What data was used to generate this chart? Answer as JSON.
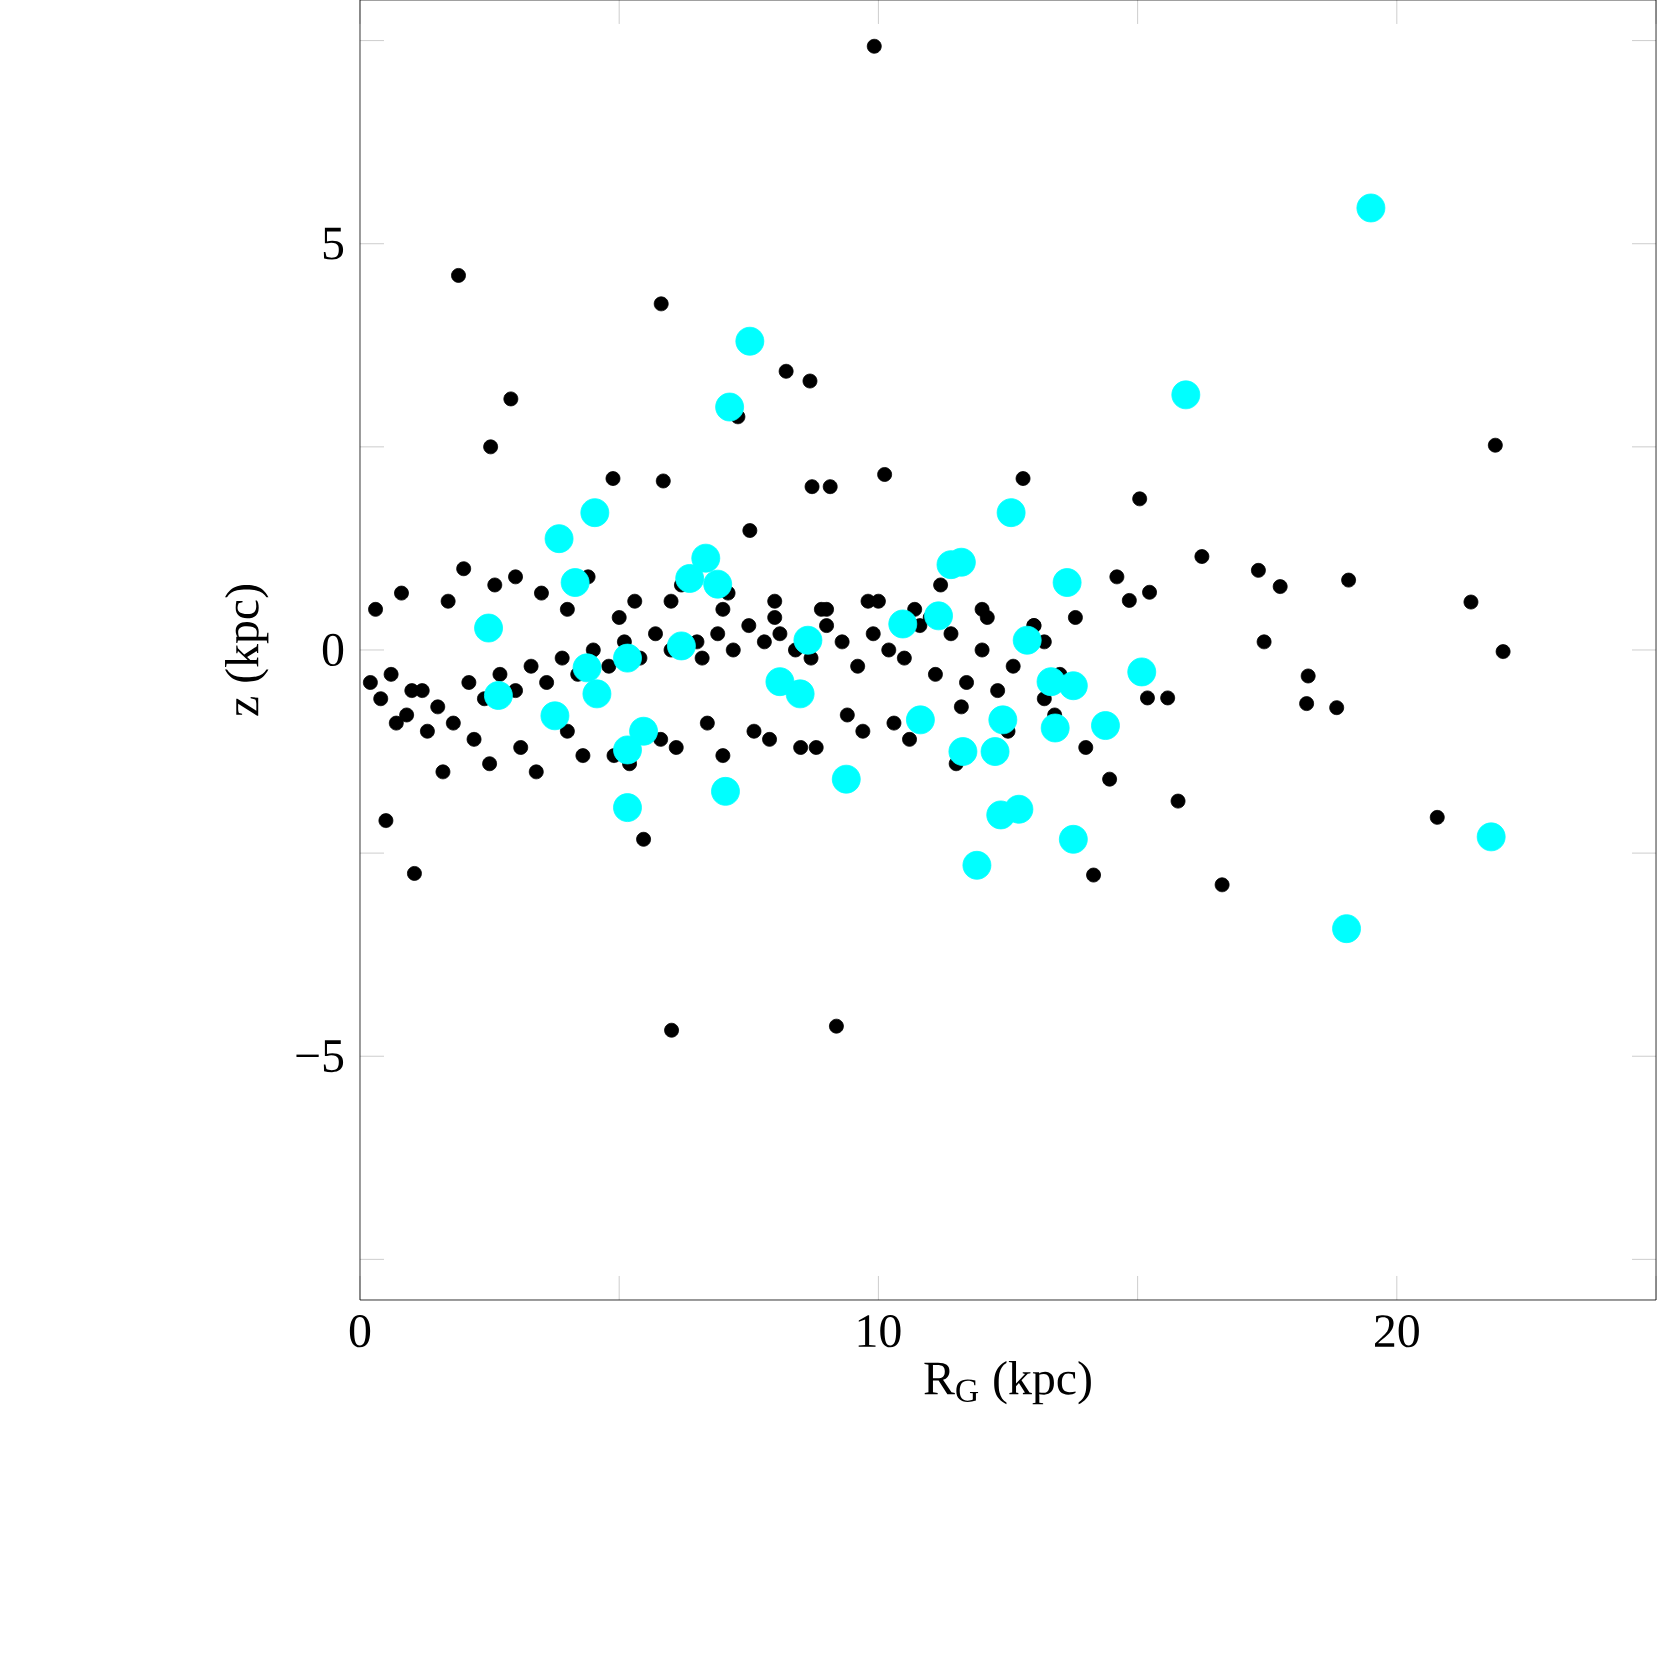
{
  "chart_data": {
    "type": "scatter",
    "xlabel": "R$_{G}$ (kpc)",
    "ylabel": "z (kpc)",
    "grid": false,
    "xlim": [
      0,
      25
    ],
    "ylim": [
      -8,
      8
    ],
    "xticks": [
      0,
      {
        "value": 5,
        "label": null
      },
      10,
      {
        "value": 15,
        "label": null
      },
      20,
      {
        "value": 25,
        "label": null
      }
    ],
    "yticks": [
      {
        "value": -5,
        "label": "−5"
      },
      {
        "value": -2.5,
        "label": null
      },
      0,
      {
        "value": 2.5,
        "label": null
      },
      5,
      {
        "value": -7.5,
        "label": null
      },
      {
        "value": 7.5,
        "label": null
      }
    ],
    "series": [
      {
        "color": "#000000",
        "x": [
          9.92,
          1.9,
          5.81,
          2.91,
          2.52,
          7.29,
          8.22,
          8.68,
          10.12,
          12.79,
          15.04,
          21.9,
          8.72,
          9.07,
          5.85,
          4.88,
          7.52,
          16.24,
          17.33,
          17.75,
          19.07,
          21.43,
          22.05,
          17.44,
          18.29,
          18.26,
          18.84,
          20.78,
          16.63,
          15.78,
          14.15,
          14.46,
          6.01,
          9.19,
          1.05,
          0.5,
          5.47,
          15.19,
          15.58,
          15.23,
          14.84,
          0.2,
          0.4,
          0.6,
          0.9,
          1.2,
          1.5,
          1.8,
          2.1,
          2.4,
          2.7,
          3.0,
          3.3,
          3.6,
          3.9,
          4.2,
          4.5,
          4.8,
          5.1,
          5.4,
          5.7,
          6.0,
          6.5,
          6.6,
          6.9,
          7.2,
          7.5,
          7.8,
          8.1,
          8.4,
          8.7,
          9.0,
          9.3,
          9.6,
          9.9,
          10.2,
          10.5,
          10.8,
          11.1,
          11.4,
          11.7,
          12.0,
          12.3,
          12.6,
          13.2,
          13.2,
          13.5,
          13.8,
          0.3,
          0.8,
          1.3,
          1.7,
          2.2,
          2.6,
          3.1,
          3.5,
          4.0,
          4.4,
          4.9,
          5.3,
          5.8,
          6.2,
          6.7,
          7.1,
          7.6,
          8.0,
          8.5,
          8.9,
          9.4,
          9.8,
          10.3,
          10.7,
          11.2,
          11.6,
          12.1,
          12.5,
          13.0,
          13.4,
          14.0,
          14.6,
          1.0,
          2.0,
          3.0,
          4.0,
          5.0,
          6.0,
          7.0,
          8.0,
          9.0,
          10.0,
          11.0,
          12.0,
          13.0,
          0.7,
          1.6,
          2.5,
          3.4,
          4.3,
          5.2,
          6.1,
          7.0,
          7.9,
          8.8,
          9.7,
          10.6,
          11.5
        ],
        "values": [
          7.43,
          4.61,
          4.26,
          3.09,
          2.5,
          2.87,
          3.43,
          3.31,
          2.16,
          2.11,
          1.86,
          2.52,
          2.01,
          2.01,
          2.08,
          2.11,
          1.47,
          1.15,
          0.98,
          0.78,
          0.86,
          0.59,
          -0.02,
          0.1,
          -0.32,
          -0.66,
          -0.71,
          -2.06,
          -2.89,
          -1.86,
          -2.77,
          -1.59,
          -4.68,
          -4.63,
          -2.75,
          -2.1,
          -2.33,
          -0.59,
          -0.59,
          0.71,
          0.61,
          -0.4,
          -0.6,
          -0.3,
          -0.8,
          -0.5,
          -0.7,
          -0.9,
          -0.4,
          -0.6,
          -0.3,
          -0.5,
          -0.2,
          -0.4,
          -0.1,
          -0.3,
          0.0,
          -0.2,
          0.1,
          -0.1,
          0.2,
          0.0,
          0.1,
          -0.1,
          0.2,
          0.0,
          0.3,
          0.1,
          0.2,
          0.0,
          -0.1,
          0.3,
          0.1,
          -0.2,
          0.2,
          0.0,
          -0.1,
          0.3,
          -0.3,
          0.2,
          -0.4,
          0.0,
          -0.5,
          -0.2,
          0.1,
          -0.6,
          -0.3,
          0.4,
          0.5,
          0.7,
          -1.0,
          0.6,
          -1.1,
          0.8,
          -1.2,
          0.7,
          -1.0,
          0.9,
          -1.3,
          0.6,
          -1.1,
          0.8,
          -0.9,
          0.7,
          -1.0,
          0.6,
          -1.2,
          0.5,
          -0.8,
          0.6,
          -0.9,
          0.5,
          0.8,
          -0.7,
          0.4,
          -1.0,
          0.3,
          -0.8,
          -1.2,
          0.9,
          -0.5,
          1.0,
          0.9,
          0.5,
          0.4,
          0.6,
          0.5,
          0.4,
          0.5,
          0.6,
          0.4,
          0.5,
          0.3,
          -0.9,
          -1.5,
          -1.4,
          -1.5,
          -1.3,
          -1.4,
          -1.2,
          -1.3,
          -1.1,
          -1.2,
          -1.0,
          -1.1,
          -1.4
        ]
      },
      {
        "color": "#00ffff",
        "x": [
          19.5,
          15.93,
          7.52,
          7.13,
          4.53,
          3.84,
          12.56,
          6.67,
          11.4,
          11.6,
          6.36,
          6.9,
          4.15,
          13.64,
          11.16,
          10.47,
          2.48,
          8.64,
          12.87,
          6.2,
          5.16,
          4.38,
          15.08,
          13.33,
          13.76,
          8.1,
          8.49,
          2.67,
          4.57,
          3.76,
          10.81,
          12.4,
          13.41,
          14.38,
          5.47,
          5.16,
          11.63,
          12.25,
          7.05,
          9.38,
          5.16,
          12.71,
          12.36,
          13.76,
          21.82,
          11.9,
          19.03
        ],
        "values": [
          5.44,
          3.14,
          3.8,
          2.99,
          1.69,
          1.37,
          1.69,
          1.13,
          1.05,
          1.08,
          0.88,
          0.81,
          0.83,
          0.83,
          0.42,
          0.32,
          0.27,
          0.12,
          0.12,
          0.05,
          -0.1,
          -0.22,
          -0.27,
          -0.39,
          -0.44,
          -0.39,
          -0.54,
          -0.56,
          -0.54,
          -0.81,
          -0.86,
          -0.86,
          -0.96,
          -0.93,
          -1.0,
          -1.23,
          -1.25,
          -1.25,
          -1.74,
          -1.59,
          -1.94,
          -1.96,
          -2.03,
          -2.33,
          -2.3,
          -2.65,
          -3.43
        ]
      }
    ]
  }
}
